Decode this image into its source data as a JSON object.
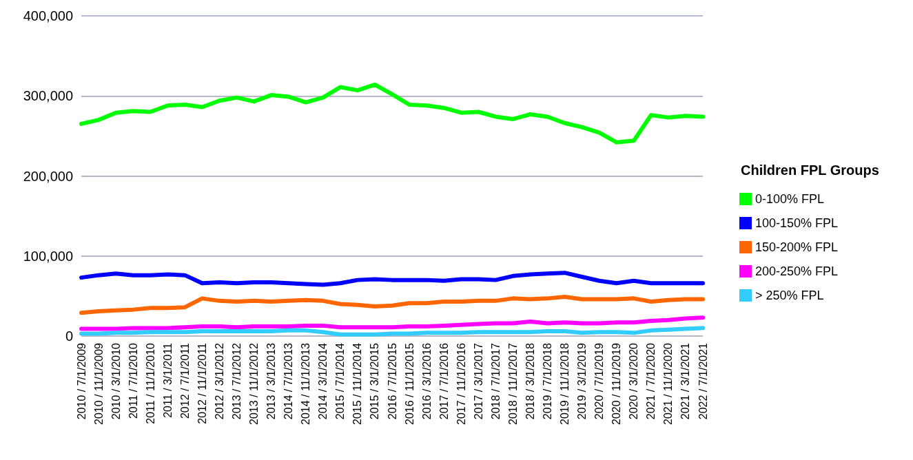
{
  "chart_data": {
    "type": "line",
    "categories": [
      "2010 / 7/1/2009",
      "2010 / 11/1/2009",
      "2010 / 3/1/2010",
      "2011 / 7/1/2010",
      "2011 / 11/1/2010",
      "2011 / 3/1/2011",
      "2012 / 7/1/2011",
      "2012 / 11/1/2011",
      "2012 / 3/1/2012",
      "2013 / 7/1/2012",
      "2013 / 11/1/2012",
      "2013 / 3/1/2013",
      "2014 / 7/1/2013",
      "2014 / 11/1/2013",
      "2014 / 3/1/2014",
      "2015 / 7/1/2014",
      "2015 / 11/1/2014",
      "2015 / 3/1/2015",
      "2016 / 7/1/2015",
      "2016 / 11/1/2015",
      "2016 / 3/1/2016",
      "2017 / 7/1/2016",
      "2017 / 11/1/2016",
      "2017 / 3/1/2017",
      "2018 / 7/1/2017",
      "2018 / 11/1/2017",
      "2018 / 3/1/2018",
      "2019 / 7/1/2018",
      "2019 / 11/1/2018",
      "2019 / 3/1/2019",
      "2020 / 7/1/2019",
      "2020 / 11/1/2019",
      "2020 / 3/1/2020",
      "2021 / 7/1/2020",
      "2021 / 11/1/2020",
      "2021 / 3/1/2021",
      "2022 / 7/1/2021"
    ],
    "series": [
      {
        "name": "0-100% FPL",
        "color": "#00ff00",
        "values": [
          265000,
          270000,
          279000,
          281000,
          280000,
          288000,
          289000,
          286000,
          294000,
          298000,
          293000,
          301000,
          299000,
          292000,
          298000,
          311000,
          307000,
          314000,
          302000,
          289000,
          288000,
          285000,
          279000,
          280000,
          274000,
          271000,
          277000,
          274000,
          266000,
          261000,
          254000,
          242000,
          244000,
          276000,
          273000,
          275000,
          274000
        ]
      },
      {
        "name": "100-150% FPL",
        "color": "#0000ff",
        "values": [
          73000,
          76000,
          78000,
          76000,
          76000,
          77000,
          76000,
          66000,
          67000,
          66000,
          67000,
          67000,
          66000,
          65000,
          64000,
          66000,
          70000,
          71000,
          70000,
          70000,
          70000,
          69000,
          71000,
          71000,
          70000,
          75000,
          77000,
          78000,
          79000,
          74000,
          69000,
          66000,
          69000,
          66000,
          66000,
          66000,
          66000
        ]
      },
      {
        "name": "150-200% FPL",
        "color": "#ff6600",
        "values": [
          29000,
          31000,
          32000,
          33000,
          35000,
          35000,
          36000,
          47000,
          44000,
          43000,
          44000,
          43000,
          44000,
          45000,
          44000,
          40000,
          39000,
          37000,
          38000,
          41000,
          41000,
          43000,
          43000,
          44000,
          44000,
          47000,
          46000,
          47000,
          49000,
          46000,
          46000,
          46000,
          47000,
          43000,
          45000,
          46000,
          46000
        ]
      },
      {
        "name": "200-250% FPL",
        "color": "#ff00ff",
        "values": [
          9000,
          9000,
          9000,
          10000,
          10000,
          10000,
          11000,
          12000,
          12000,
          11000,
          12000,
          12000,
          12000,
          13000,
          13000,
          11000,
          11000,
          11000,
          11000,
          12000,
          12000,
          13000,
          14000,
          15000,
          16000,
          16000,
          18000,
          16000,
          17000,
          16000,
          16000,
          17000,
          17000,
          19000,
          20000,
          22000,
          23000
        ]
      },
      {
        "name": "> 250% FPL",
        "color": "#33ccff",
        "values": [
          3000,
          3000,
          4000,
          4000,
          5000,
          5000,
          5000,
          6000,
          6000,
          6000,
          6000,
          6000,
          7000,
          7000,
          5000,
          2000,
          2000,
          2000,
          3000,
          3000,
          4000,
          4000,
          4000,
          5000,
          5000,
          5000,
          5000,
          6000,
          6000,
          4000,
          5000,
          5000,
          4000,
          7000,
          8000,
          9000,
          10000
        ]
      }
    ],
    "ylim": [
      0,
      400000
    ],
    "yticks": [
      0,
      {
        "value": 100000,
        "label": "100,000"
      },
      {
        "value": 200000,
        "label": "200,000"
      },
      {
        "value": 300000,
        "label": "300,000"
      },
      {
        "value": 400000,
        "label": "400,000"
      }
    ],
    "grid": "y",
    "legend": "right",
    "legend_title": "Children FPL Groups",
    "marker": "none",
    "line_style": "solid"
  }
}
